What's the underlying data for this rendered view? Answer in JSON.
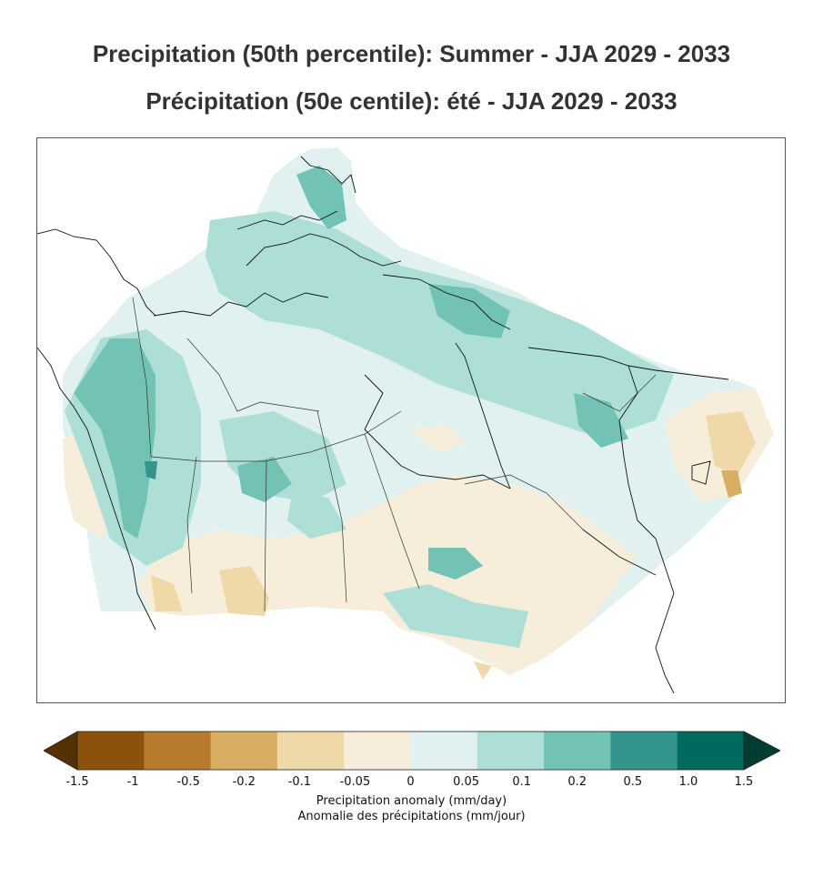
{
  "title_en": "Precipitation (50th percentile): Summer - JJA 2029 - 2033",
  "title_fr": "Précipitation (50e centile): été - JJA 2029 - 2033",
  "colorbar": {
    "label_en": "Precipitation anomaly (mm/day)",
    "label_fr": "Anomalie des précipitations (mm/jour)",
    "ticks": [
      "-1.5",
      "-1",
      "-0.5",
      "-0.2",
      "-0.1",
      "-0.05",
      "0",
      "0.05",
      "0.1",
      "0.2",
      "0.5",
      "1.0",
      "1.5"
    ],
    "colors": [
      "#543005",
      "#8c510a",
      "#b87a2c",
      "#d8ae62",
      "#efd9a8",
      "#f6eedb",
      "#e1f1ef",
      "#aedfd6",
      "#72c2b6",
      "#34958d",
      "#016a5e",
      "#003c30"
    ]
  },
  "map": {
    "region": "Canada",
    "field_colors": {
      "base": "#e1f1ef",
      "light_teal": "#aedfd6",
      "teal": "#72c2b6",
      "dark_teal": "#34958d",
      "cream": "#f6eedb",
      "tan": "#efd9a8",
      "ochre": "#d8ae62"
    }
  }
}
